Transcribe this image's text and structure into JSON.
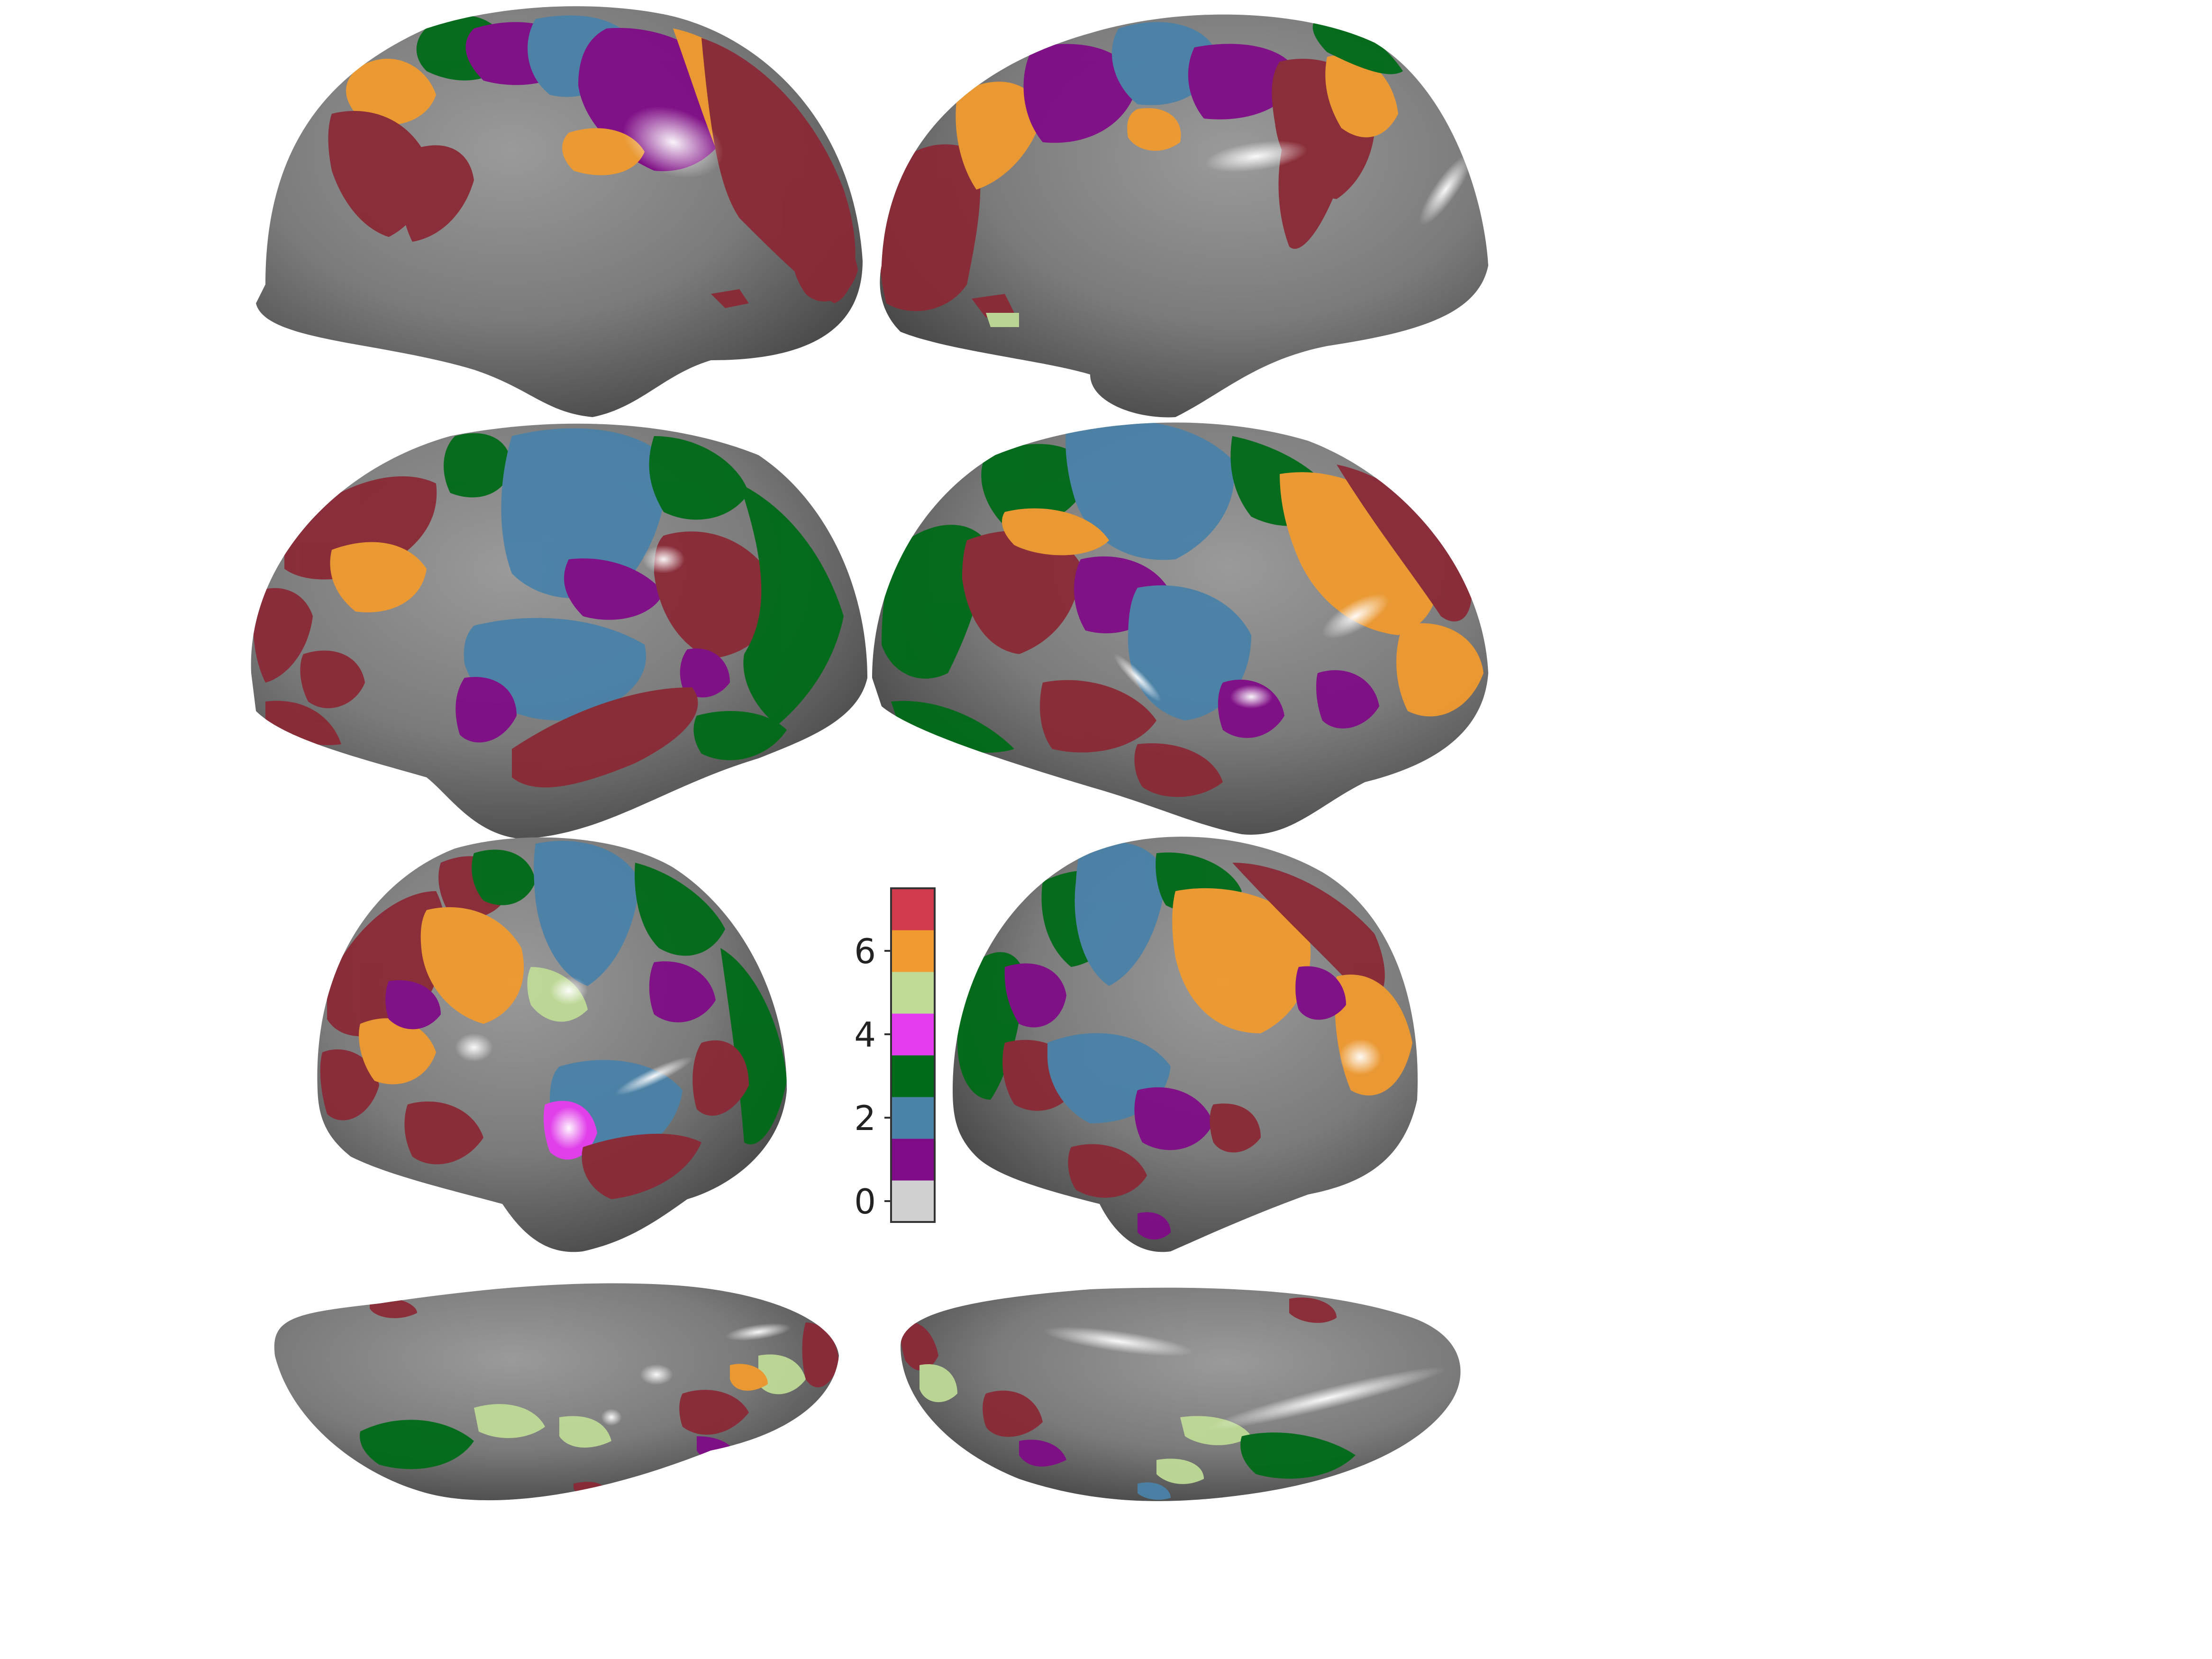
{
  "colorbar": {
    "ticks": [
      {
        "value": 0,
        "label": "0"
      },
      {
        "value": 2,
        "label": "2"
      },
      {
        "value": 4,
        "label": "4"
      },
      {
        "value": 6,
        "label": "6"
      }
    ],
    "range": [
      0,
      7
    ],
    "levels": [
      {
        "value": 0,
        "color": "#d0d0d0"
      },
      {
        "value": 1,
        "color": "#800b87"
      },
      {
        "value": 2,
        "color": "#4a82a8"
      },
      {
        "value": 3,
        "color": "#006b18"
      },
      {
        "value": 4,
        "color": "#e63cf0"
      },
      {
        "value": 5,
        "color": "#bfdb96"
      },
      {
        "value": 6,
        "color": "#f09a2f"
      },
      {
        "value": 7,
        "color": "#d13a4c"
      }
    ]
  },
  "surface_colors": {
    "base": "#7b7b7b",
    "dark": "#3f3f3f",
    "highlight": "#ffffff"
  },
  "views": [
    {
      "name": "left-medial-view"
    },
    {
      "name": "right-medial-view"
    },
    {
      "name": "left-lateral-view"
    },
    {
      "name": "right-lateral-view"
    },
    {
      "name": "left-anterior-view"
    },
    {
      "name": "right-posterior-view"
    },
    {
      "name": "left-ventral-view"
    },
    {
      "name": "right-ventral-view"
    }
  ]
}
